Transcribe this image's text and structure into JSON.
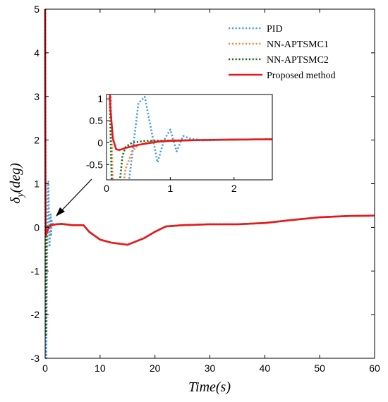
{
  "chart_data": {
    "type": "line",
    "xlabel": "Time(s)",
    "ylabel": "δ_y(deg)",
    "ylabel_parts": {
      "main": "δ",
      "sub": "y",
      "rest": "(deg)"
    },
    "xlim": [
      0,
      60
    ],
    "ylim": [
      -3,
      5
    ],
    "xticks": [
      "0",
      "10",
      "20",
      "30",
      "40",
      "50",
      "60"
    ],
    "yticks": [
      "-3",
      "-2",
      "-1",
      "0",
      "1",
      "2",
      "3",
      "4",
      "5"
    ],
    "grid": false,
    "legend_position": "top-right",
    "series": [
      {
        "name": "PID",
        "color": "#4a9fdc",
        "dash": "dotted",
        "x": [
          0,
          0.05,
          0.1,
          0.2,
          0.3,
          0.4,
          0.5,
          0.6,
          0.7,
          0.8,
          0.9,
          1.0,
          1.1,
          1.2,
          1.3,
          1.5,
          2,
          3,
          5,
          7,
          8,
          10,
          12,
          15,
          18,
          20,
          22,
          25,
          30,
          35,
          40,
          45,
          50,
          55,
          60
        ],
        "y": [
          5,
          2.5,
          -2.5,
          -3,
          -1.5,
          -0.3,
          0.9,
          1.05,
          0.3,
          -0.45,
          0.05,
          0.3,
          -0.2,
          0.15,
          0.1,
          0.05,
          0.07,
          0.08,
          0.05,
          0.05,
          -0.1,
          -0.28,
          -0.35,
          -0.4,
          -0.25,
          -0.1,
          0.02,
          0.05,
          0.07,
          0.07,
          0.1,
          0.17,
          0.23,
          0.26,
          0.27
        ]
      },
      {
        "name": "NN-APTSMC1",
        "color": "#f0883c",
        "dash": "dotted",
        "x": [
          0,
          0.05,
          0.1,
          0.15,
          0.2,
          0.3,
          0.4,
          0.5,
          0.7,
          1.0,
          1.5,
          2,
          3,
          5,
          7,
          8,
          10,
          12,
          15,
          18,
          20,
          22,
          25,
          30,
          35,
          40,
          45,
          50,
          55,
          60
        ],
        "y": [
          5,
          2,
          -1,
          -2.5,
          -1.5,
          -0.6,
          -0.2,
          -0.05,
          0.03,
          0.05,
          0.06,
          0.07,
          0.08,
          0.05,
          0.05,
          -0.1,
          -0.28,
          -0.35,
          -0.4,
          -0.25,
          -0.1,
          0.02,
          0.05,
          0.07,
          0.07,
          0.1,
          0.17,
          0.23,
          0.26,
          0.27
        ]
      },
      {
        "name": "NN-APTSMC2",
        "color": "#1e6b1e",
        "dash": "dotted",
        "x": [
          0,
          0.05,
          0.1,
          0.15,
          0.2,
          0.25,
          0.3,
          0.4,
          0.6,
          1.0,
          1.5,
          2,
          3,
          5,
          7,
          8,
          10,
          12,
          15,
          18,
          20,
          22,
          25,
          30,
          35,
          40,
          45,
          50,
          55,
          60
        ],
        "y": [
          5,
          1,
          -2,
          -2.5,
          -1,
          -0.3,
          -0.1,
          0,
          0.04,
          0.05,
          0.06,
          0.07,
          0.08,
          0.05,
          0.05,
          -0.1,
          -0.28,
          -0.35,
          -0.4,
          -0.25,
          -0.1,
          0.02,
          0.05,
          0.07,
          0.07,
          0.1,
          0.17,
          0.23,
          0.26,
          0.27
        ]
      },
      {
        "name": "Proposed method",
        "color": "#e8191c",
        "dash": "solid",
        "x": [
          0,
          0.03,
          0.06,
          0.1,
          0.15,
          0.2,
          0.3,
          0.5,
          0.8,
          1.0,
          1.5,
          2,
          3,
          5,
          7,
          8,
          10,
          12,
          15,
          18,
          20,
          22,
          25,
          30,
          35,
          40,
          45,
          50,
          55,
          60
        ],
        "y": [
          5,
          2.5,
          0.8,
          0.1,
          -0.15,
          -0.17,
          -0.12,
          -0.05,
          0.02,
          0.04,
          0.06,
          0.07,
          0.08,
          0.05,
          0.05,
          -0.1,
          -0.28,
          -0.35,
          -0.4,
          -0.25,
          -0.1,
          0.02,
          0.05,
          0.07,
          0.07,
          0.1,
          0.17,
          0.23,
          0.26,
          0.27
        ]
      }
    ],
    "inset": {
      "xlim": [
        0,
        2.6
      ],
      "ylim": [
        -0.85,
        1.1
      ],
      "xticks": [
        "0",
        "1",
        "2"
      ],
      "yticks": [
        "-0.5",
        "0",
        "0.5",
        "1"
      ]
    },
    "annotation": {
      "type": "arrow"
    }
  }
}
